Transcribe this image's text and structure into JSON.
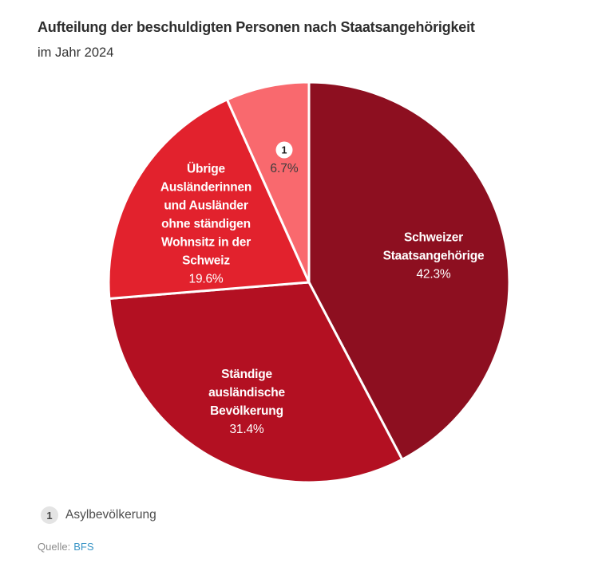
{
  "header": {
    "title": "Aufteilung der beschuldigten Personen nach Staatsangehörigkeit",
    "subtitle": "im Jahr 2024"
  },
  "chart_data": {
    "type": "pie",
    "title": "Aufteilung der beschuldigten Personen nach Staatsangehörigkeit im Jahr 2024",
    "unit": "%",
    "start_angle_deg": 0,
    "direction": "clockwise",
    "separator_color": "#FFFFFF",
    "separator_width": 3,
    "slices": [
      {
        "label": "Schweizer Staatsangehörige",
        "value": 42.3,
        "display": "42.3%",
        "color": "#8D0F20",
        "text_color": "#FFFFFF"
      },
      {
        "label": "Ständige ausländische Bevölkerung",
        "value": 31.4,
        "display": "31.4%",
        "color": "#B31022",
        "text_color": "#FFFFFF"
      },
      {
        "label": "Übrige Ausländerinnen und Ausländer ohne ständigen Wohnsitz in der Schweiz",
        "value": 19.6,
        "display": "19.6%",
        "color": "#E2222D",
        "text_color": "#FFFFFF"
      },
      {
        "label": "Asylbevölkerung",
        "value": 6.7,
        "display": "6.7%",
        "color": "#F9696E",
        "text_color": "#3C3C3C",
        "footnote": "1"
      }
    ]
  },
  "slice_labels": {
    "schweizer": {
      "lines": [
        "Schweizer",
        "Staatsangehörige"
      ],
      "pct": "42.3%"
    },
    "staendige": {
      "lines": [
        "Ständige",
        "ausländische",
        "Bevölkerung"
      ],
      "pct": "31.4%"
    },
    "uebrige": {
      "lines": [
        "Übrige",
        "Ausländerinnen",
        "und Ausländer",
        "ohne ständigen",
        "Wohnsitz in der",
        "Schweiz"
      ],
      "pct": "19.6%"
    },
    "asyl": {
      "marker": "1",
      "pct": "6.7%"
    }
  },
  "legend": {
    "marker": "1",
    "label": "Asylbevölkerung"
  },
  "footer": {
    "source_label": "Quelle:",
    "source_link_text": "BFS"
  }
}
